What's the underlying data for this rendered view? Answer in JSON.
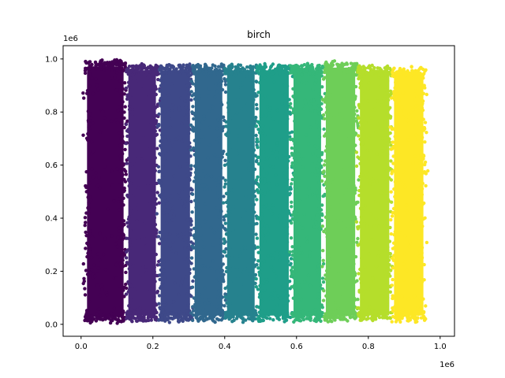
{
  "chart_data": {
    "type": "scatter",
    "title": "birch",
    "xlabel": "",
    "ylabel": "",
    "x_offset_text": "1e6",
    "y_offset_text": "1e6",
    "xlim": [
      -50000,
      1040000
    ],
    "ylim": [
      -45000,
      1050000
    ],
    "xticks": [
      0,
      200000,
      400000,
      600000,
      800000,
      1000000
    ],
    "xtick_labels": [
      "0.0",
      "0.2",
      "0.4",
      "0.6",
      "0.8",
      "1.0"
    ],
    "yticks": [
      0,
      200000,
      400000,
      600000,
      800000,
      1000000
    ],
    "ytick_labels": [
      "0.0",
      "0.2",
      "0.4",
      "0.6",
      "0.8",
      "1.0"
    ],
    "grid": false,
    "colormap": "viridis",
    "series": [
      {
        "x_range": [
          10000,
          125000
        ],
        "y_range": [
          10000,
          990000
        ],
        "color": "#440154"
      },
      {
        "x_range": [
          125000,
          215000
        ],
        "y_range": [
          15000,
          975000
        ],
        "color": "#482878"
      },
      {
        "x_range": [
          215000,
          310000
        ],
        "y_range": [
          15000,
          975000
        ],
        "color": "#3e4989"
      },
      {
        "x_range": [
          310000,
          400000
        ],
        "y_range": [
          15000,
          975000
        ],
        "color": "#31688e"
      },
      {
        "x_range": [
          400000,
          490000
        ],
        "y_range": [
          15000,
          975000
        ],
        "color": "#26828e"
      },
      {
        "x_range": [
          490000,
          585000
        ],
        "y_range": [
          15000,
          975000
        ],
        "color": "#1f9e89"
      },
      {
        "x_range": [
          585000,
          675000
        ],
        "y_range": [
          15000,
          975000
        ],
        "color": "#35b779"
      },
      {
        "x_range": [
          675000,
          770000
        ],
        "y_range": [
          15000,
          985000
        ],
        "color": "#6ece58"
      },
      {
        "x_range": [
          770000,
          865000
        ],
        "y_range": [
          15000,
          970000
        ],
        "color": "#b5de2b"
      },
      {
        "x_range": [
          865000,
          960000
        ],
        "y_range": [
          15000,
          965000
        ],
        "color": "#fde725"
      }
    ]
  }
}
